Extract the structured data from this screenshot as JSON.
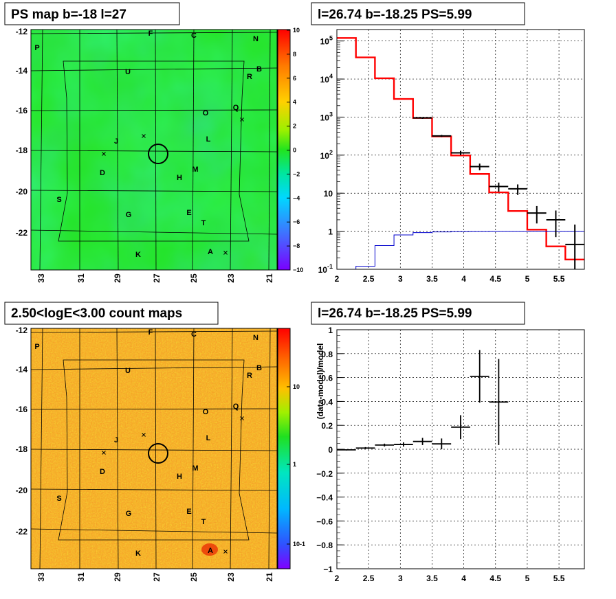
{
  "panels": {
    "ps_map": {
      "title": "PS map b=-18 l=27",
      "x_ticks": [
        "33",
        "31",
        "29",
        "27",
        "25",
        "23",
        "21"
      ],
      "y_ticks": [
        "-12",
        "-14",
        "-16",
        "-18",
        "-20",
        "-22"
      ],
      "colorbar_ticks": [
        "10",
        "8",
        "6",
        "4",
        "2",
        "0",
        "−2",
        "−4",
        "−6",
        "−8",
        "−10"
      ],
      "base_color": "#22e41e"
    },
    "count_map": {
      "title": "2.50<logE<3.00 count maps",
      "x_ticks": [
        "33",
        "31",
        "29",
        "27",
        "25",
        "23",
        "21"
      ],
      "y_ticks": [
        "-12",
        "-14",
        "-16",
        "-18",
        "-20",
        "-22"
      ],
      "colorbar_ticks": [
        "10",
        "1",
        "10-1"
      ],
      "base_color": "#f5a020"
    },
    "spectrum": {
      "title": "l=26.74 b=-18.25 PS=5.99"
    },
    "residual": {
      "title": "l=26.74 b=-18.25 PS=5.99"
    }
  },
  "sources": [
    {
      "label": "F"
    },
    {
      "label": "C"
    },
    {
      "label": "N"
    },
    {
      "label": "P"
    },
    {
      "label": "U"
    },
    {
      "label": "B"
    },
    {
      "label": "R"
    },
    {
      "label": "O"
    },
    {
      "label": "Q"
    },
    {
      "label": "J"
    },
    {
      "label": "L"
    },
    {
      "label": "D"
    },
    {
      "label": "M"
    },
    {
      "label": "H"
    },
    {
      "label": "S"
    },
    {
      "label": "G"
    },
    {
      "label": "E"
    },
    {
      "label": "T"
    },
    {
      "label": "K"
    },
    {
      "label": "A"
    }
  ],
  "chart_data": [
    {
      "type": "heatmap",
      "title": "PS map b=-18 l=27",
      "xlabel": "",
      "ylabel": "",
      "x_range": [
        33.5,
        20.5
      ],
      "y_range": [
        -23.5,
        -12
      ],
      "z_range": [
        -10,
        10
      ],
      "colorbar_ticks": [
        10,
        8,
        6,
        4,
        2,
        0,
        -2,
        -4,
        -6,
        -8,
        -10
      ],
      "candidate_circle": {
        "l": 26.74,
        "b": -18.25
      }
    },
    {
      "type": "line",
      "title": "l=26.74 b=-18.25 PS=5.99",
      "xlabel": "",
      "ylabel": "",
      "x_range": [
        2,
        5.9
      ],
      "y_range": [
        0.1,
        200000
      ],
      "y_scale": "log",
      "x_ticks": [
        2,
        2.5,
        3,
        3.5,
        4,
        4.5,
        5,
        5.5
      ],
      "y_ticks": [
        "10^-1",
        "1",
        "10",
        "10^2",
        "10^3",
        "10^4",
        "10^5"
      ],
      "grid": true,
      "series": [
        {
          "color": "#ff0000",
          "style": "step",
          "edges": [
            2.0,
            2.3,
            2.6,
            2.9,
            3.2,
            3.5,
            3.8,
            4.1,
            4.4,
            4.7,
            5.0,
            5.3,
            5.6,
            5.9
          ],
          "values": [
            120000,
            37000,
            10500,
            3000,
            950,
            310,
            98,
            32,
            10.5,
            3.4,
            1.1,
            0.4,
            0.18
          ]
        },
        {
          "color": "#0000cc",
          "style": "step",
          "edges": [
            2.0,
            2.3,
            2.6,
            2.9,
            3.2,
            3.5,
            3.8,
            4.1,
            4.4,
            4.7,
            5.0,
            5.3,
            5.6,
            5.9
          ],
          "values": [
            0.1,
            0.12,
            0.42,
            0.8,
            0.92,
            0.96,
            0.98,
            0.99,
            1.0,
            1.0,
            1.0,
            1.0,
            1.0
          ]
        },
        {
          "color": "#000000",
          "style": "points",
          "x": [
            3.35,
            3.65,
            3.95,
            4.25,
            4.55,
            4.85,
            5.15,
            5.45,
            5.75
          ],
          "y": [
            950,
            320,
            115,
            50,
            15,
            13,
            3,
            2,
            0.45
          ],
          "xerr": [
            0.15,
            0.15,
            0.15,
            0.15,
            0.15,
            0.15,
            0.15,
            0.15,
            0.15
          ],
          "ylo": [
            900,
            300,
            100,
            40,
            11,
            9,
            1.6,
            0.7,
            0.1
          ],
          "yhi": [
            1000,
            340,
            130,
            60,
            19,
            17,
            4.6,
            3.5,
            1.5
          ]
        }
      ]
    },
    {
      "type": "heatmap",
      "title": "2.50<logE<3.00 count maps",
      "xlabel": "",
      "ylabel": "",
      "x_range": [
        33.5,
        20.5
      ],
      "y_range": [
        -23.5,
        -12
      ],
      "z_scale": "log",
      "colorbar_ticks": [
        "10",
        "1",
        "10^-1"
      ]
    },
    {
      "type": "scatter",
      "title": "l=26.74 b=-18.25 PS=5.99",
      "xlabel": "",
      "ylabel": "(data-model)/model",
      "x_range": [
        2,
        5.9
      ],
      "y_range": [
        -1,
        1
      ],
      "x_ticks": [
        2,
        2.5,
        3,
        3.5,
        4,
        4.5,
        5,
        5.5
      ],
      "y_ticks": [
        -1,
        -0.8,
        -0.6,
        -0.4,
        -0.2,
        0,
        0.2,
        0.4,
        0.6,
        0.8,
        1
      ],
      "grid": true,
      "series": [
        {
          "color": "#000000",
          "x": [
            2.15,
            2.45,
            2.75,
            3.05,
            3.35,
            3.65,
            3.95,
            4.25,
            4.55
          ],
          "y": [
            -0.005,
            0.01,
            0.035,
            0.04,
            0.065,
            0.045,
            0.185,
            0.61,
            0.395
          ],
          "xerr": [
            0.15,
            0.15,
            0.15,
            0.15,
            0.15,
            0.15,
            0.15,
            0.15,
            0.15
          ],
          "yerr": [
            0.005,
            0.008,
            0.012,
            0.018,
            0.03,
            0.045,
            0.1,
            0.22,
            0.36
          ]
        }
      ]
    }
  ]
}
